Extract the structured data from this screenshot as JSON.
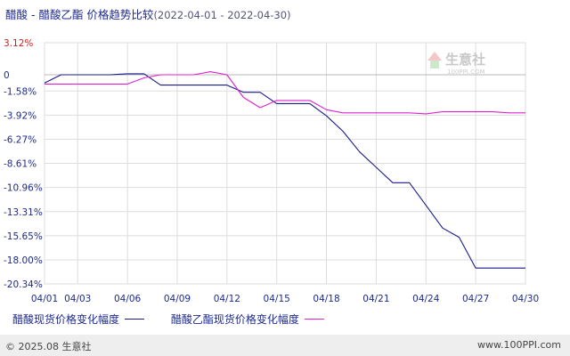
{
  "title": {
    "main": "醋酸 - 醋酸乙酯 价格趋势比较",
    "range": "(2022-04-01 - 2022-04-30)"
  },
  "watermark": {
    "text": "生意社",
    "subtext": "100PPI.COM"
  },
  "footer": {
    "copyright": "© 2025.08 生意社",
    "site": "www.100PPI.com"
  },
  "colors": {
    "series1": "#1a1a8c",
    "series2": "#e020d0",
    "grid": "#dddddd",
    "axis_text": "#1e2a8c",
    "top_tick": "#cc2222"
  },
  "chart_data": {
    "type": "line",
    "y_unit": "%",
    "ylim": [
      -20.34,
      3.12
    ],
    "y_ticks": [
      "3.12%",
      "0",
      "-1.58%",
      "-3.92%",
      "-6.27%",
      "-8.61%",
      "-10.96%",
      "-13.31%",
      "-15.65%",
      "-18.00%",
      "-20.34%"
    ],
    "y_tick_values": [
      3.12,
      0,
      -1.58,
      -3.92,
      -6.27,
      -8.61,
      -10.96,
      -13.31,
      -15.65,
      -18.0,
      -20.34
    ],
    "x_ticks": [
      "04/01",
      "04/03",
      "04/06",
      "04/09",
      "04/12",
      "04/15",
      "04/18",
      "04/21",
      "04/24",
      "04/27",
      "04/30"
    ],
    "x_tick_days": [
      1,
      3,
      6,
      9,
      12,
      15,
      18,
      21,
      24,
      27,
      30
    ],
    "grid": true,
    "legend_position": "bottom-left",
    "series": [
      {
        "name": "醋酸现货价格变化幅度",
        "color": "#1a1a8c",
        "x": [
          1,
          2,
          3,
          4,
          5,
          6,
          7,
          8,
          9,
          10,
          11,
          12,
          13,
          14,
          15,
          16,
          17,
          18,
          19,
          20,
          21,
          22,
          23,
          24,
          25,
          26,
          27,
          28,
          29,
          30
        ],
        "y": [
          -0.8,
          0,
          0,
          0,
          0,
          0.1,
          0.1,
          -1.0,
          -1.0,
          -1.0,
          -1.0,
          -1.0,
          -1.7,
          -1.7,
          -2.8,
          -2.8,
          -2.8,
          -4.0,
          -5.5,
          -7.5,
          -9.0,
          -10.5,
          -10.5,
          -12.7,
          -14.9,
          -15.8,
          -18.8,
          -18.8,
          -18.8,
          -18.8
        ]
      },
      {
        "name": "醋酸乙酯现货价格变化幅度",
        "color": "#e020d0",
        "x": [
          1,
          2,
          3,
          4,
          5,
          6,
          7,
          8,
          9,
          10,
          11,
          12,
          13,
          14,
          15,
          16,
          17,
          18,
          19,
          20,
          21,
          22,
          23,
          24,
          25,
          26,
          27,
          28,
          29,
          30
        ],
        "y": [
          -0.9,
          -0.9,
          -0.9,
          -0.9,
          -0.9,
          -0.9,
          -0.3,
          0,
          0,
          0,
          0.3,
          0,
          -2.2,
          -3.2,
          -2.5,
          -2.5,
          -2.5,
          -3.4,
          -3.7,
          -3.7,
          -3.7,
          -3.7,
          -3.7,
          -3.8,
          -3.6,
          -3.6,
          -3.6,
          -3.6,
          -3.7,
          -3.7
        ]
      }
    ]
  }
}
